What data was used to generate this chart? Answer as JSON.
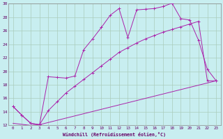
{
  "xlabel": "Windchill (Refroidissement éolien,°C)",
  "bg_color": "#c8eef0",
  "grid_color": "#aaccbb",
  "line_color": "#aa22aa",
  "xmin": -0.5,
  "xmax": 23.5,
  "ymin": 12,
  "ymax": 30,
  "yticks": [
    12,
    14,
    16,
    18,
    20,
    22,
    24,
    26,
    28,
    30
  ],
  "xticks": [
    0,
    1,
    2,
    3,
    4,
    5,
    6,
    7,
    8,
    9,
    10,
    11,
    12,
    13,
    14,
    15,
    16,
    17,
    18,
    19,
    20,
    21,
    22,
    23
  ],
  "line1_x": [
    0,
    1,
    2,
    3,
    4,
    5,
    6,
    7,
    8,
    9,
    10,
    11,
    12,
    13,
    14,
    15,
    16,
    17,
    18,
    19,
    20,
    21,
    22,
    23
  ],
  "line1_y": [
    14.8,
    13.5,
    12.3,
    12.1,
    19.2,
    19.1,
    19.0,
    19.3,
    23.2,
    24.8,
    26.5,
    28.3,
    29.3,
    25.0,
    29.1,
    29.2,
    29.3,
    29.6,
    30.1,
    27.8,
    27.6,
    24.6,
    20.3,
    18.6
  ],
  "line2_x": [
    0,
    1,
    2,
    3,
    4,
    5,
    6,
    7,
    8,
    9,
    10,
    11,
    12,
    13,
    14,
    15,
    16,
    17,
    18,
    19,
    20,
    21,
    22,
    23
  ],
  "line2_y": [
    14.8,
    13.5,
    12.3,
    12.1,
    14.2,
    15.5,
    16.8,
    17.8,
    18.8,
    19.8,
    20.8,
    21.8,
    22.8,
    23.5,
    24.2,
    24.8,
    25.3,
    25.8,
    26.2,
    26.6,
    27.0,
    27.4,
    18.6,
    18.6
  ],
  "line3_x": [
    0,
    2,
    3,
    23
  ],
  "line3_y": [
    12.3,
    12.0,
    12.1,
    18.6
  ]
}
